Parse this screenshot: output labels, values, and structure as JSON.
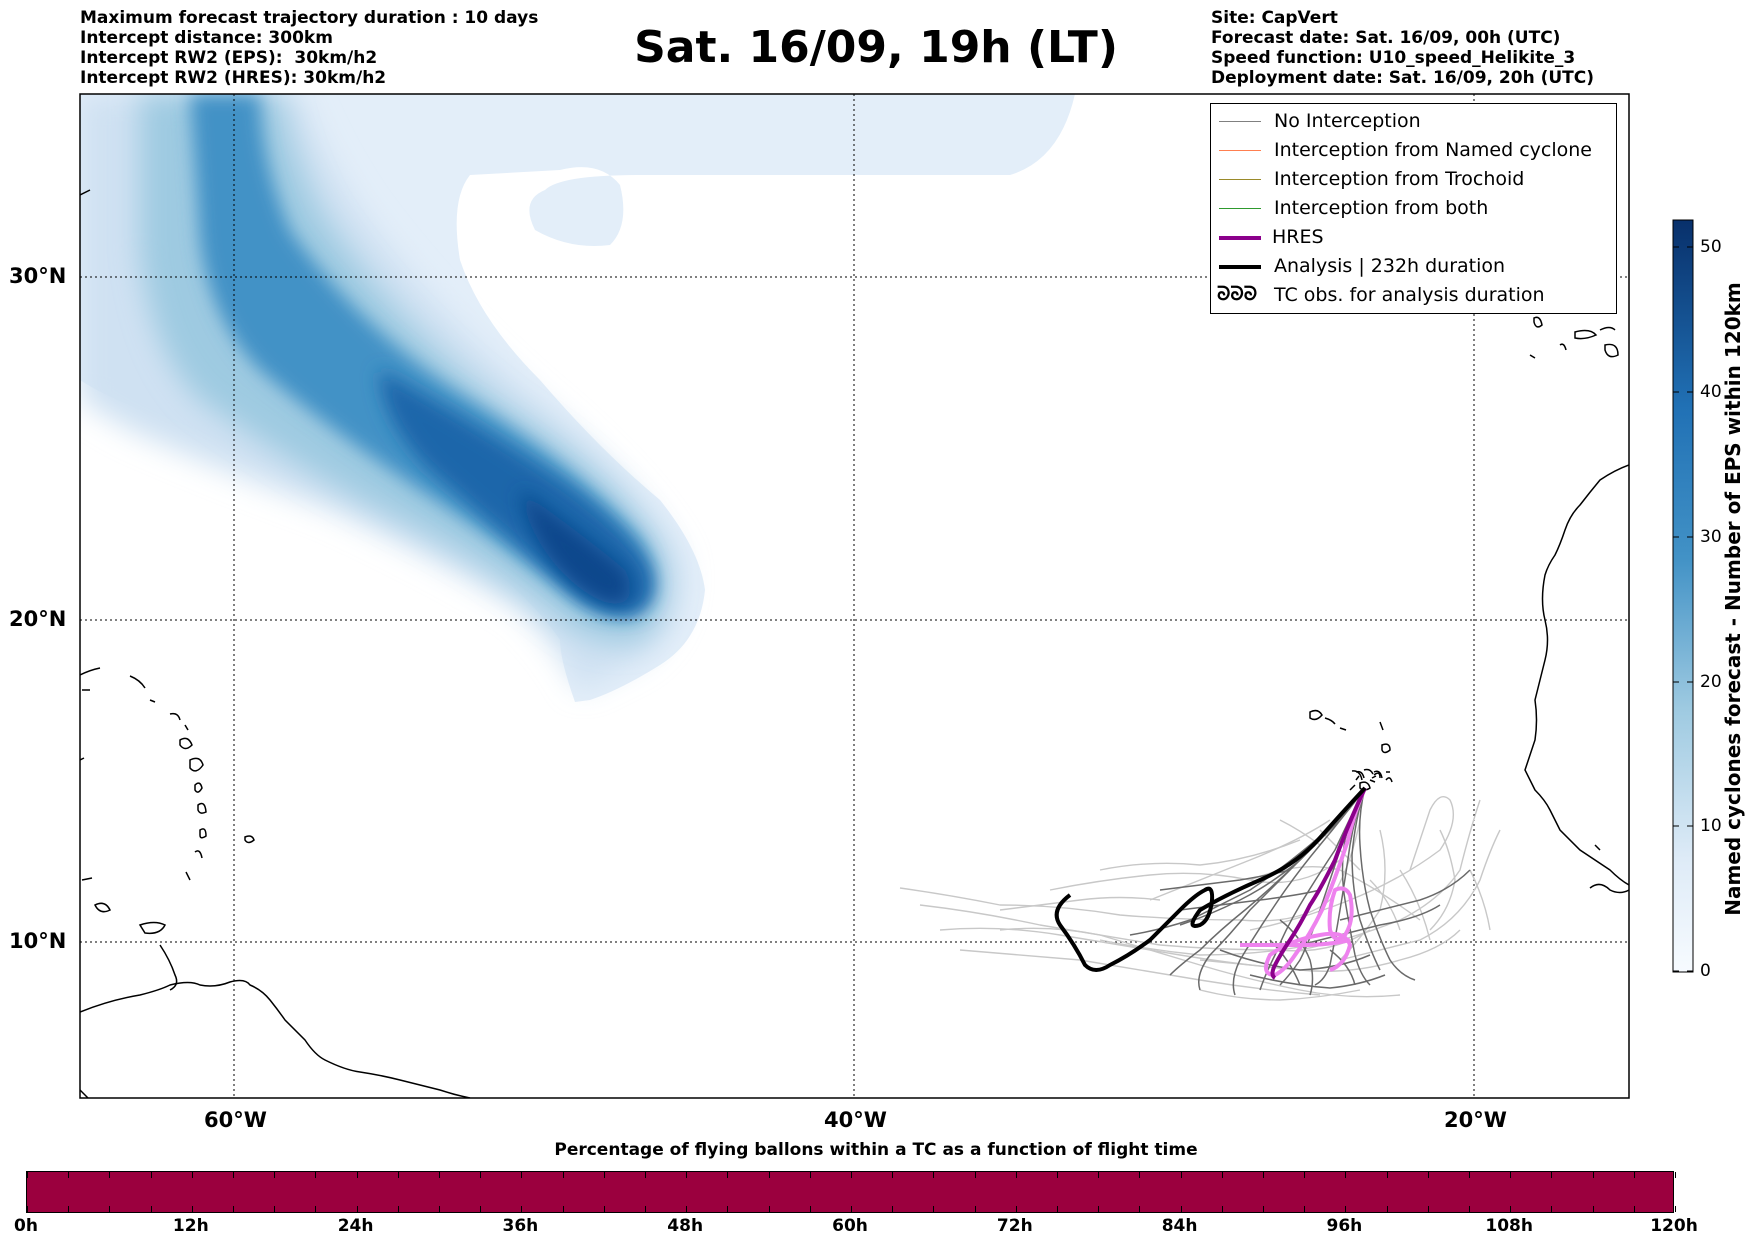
{
  "header_left": [
    "Maximum forecast trajectory duration : 10 days",
    "Intercept distance: 300km",
    "Intercept RW2 (EPS):  30km/h2",
    "Intercept RW2 (HRES): 30km/h2"
  ],
  "header_right": [
    "Site: CapVert",
    "Forecast date: Sat. 16/09, 00h (UTC)",
    "Speed function: U10_speed_Helikite_3",
    "Deployment date: Sat. 16/09, 20h (UTC)"
  ],
  "title": "Sat. 16/09, 19h (LT)",
  "map": {
    "lon_range": [
      -65,
      -15
    ],
    "lat_range": [
      5.4,
      34.8
    ],
    "lon_ticks": [
      {
        "value": -60,
        "label": "60°W"
      },
      {
        "value": -40,
        "label": "40°W"
      },
      {
        "value": -20,
        "label": "20°W"
      }
    ],
    "lat_ticks": [
      {
        "value": 30,
        "label": "30°N"
      },
      {
        "value": 20,
        "label": "20°N"
      },
      {
        "value": 10,
        "label": "10°N"
      }
    ],
    "grid": "dotted"
  },
  "legend": {
    "placement": "top-right",
    "items": [
      {
        "label": "No Interception",
        "color": "#808080",
        "style": "thin"
      },
      {
        "label": "Interception from Named cyclone",
        "color": "#ff7f50",
        "style": "thin"
      },
      {
        "label": "Interception from Trochoid",
        "color": "#9a8a2a",
        "style": "thin"
      },
      {
        "label": "Interception from both",
        "color": "#2e9a2e",
        "style": "thin"
      },
      {
        "label": "HRES",
        "color": "#8b008b",
        "style": "thick"
      },
      {
        "label": "Analysis | 232h duration",
        "color": "#000000",
        "style": "thick"
      },
      {
        "label": "TC obs. for analysis duration",
        "color": "#000000",
        "style": "symbol",
        "symbol": "ᘐᘐᘐ"
      }
    ]
  },
  "colorbar": {
    "title": "Named cyclones forecast - Number of EPS within 120km",
    "range": [
      0,
      52
    ],
    "ticks": [
      {
        "value": 0,
        "label": "0"
      },
      {
        "value": 10,
        "label": "10"
      },
      {
        "value": 20,
        "label": "20"
      },
      {
        "value": 30,
        "label": "30"
      },
      {
        "value": 40,
        "label": "40"
      },
      {
        "value": 50,
        "label": "50"
      }
    ],
    "colormap": "Blues"
  },
  "bottom_bar": {
    "title": "Percentage of flying ballons within a TC as a function of flight time",
    "color": "#9b003e",
    "ticks": [
      "0h",
      "12h",
      "24h",
      "36h",
      "48h",
      "60h",
      "72h",
      "84h",
      "96h",
      "108h",
      "120h"
    ]
  }
}
